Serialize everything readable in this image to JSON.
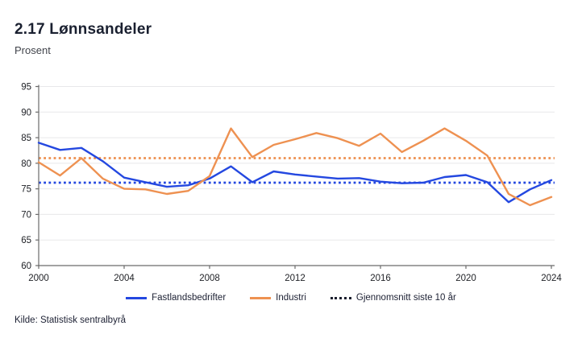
{
  "header": {
    "title": "2.17 Lønnsandeler",
    "subtitle": "Prosent"
  },
  "footer": {
    "source": "Kilde: Statistisk sentralbyrå"
  },
  "legend": {
    "items": [
      {
        "label": "Fastlandsbedrifter",
        "swatch": "line",
        "color": "#2448e0"
      },
      {
        "label": "Industri",
        "swatch": "line",
        "color": "#ee9151"
      },
      {
        "label": "Gjennomsnitt siste 10 år",
        "swatch": "dotted",
        "color": "#1b1f2e"
      }
    ]
  },
  "colors": {
    "grid": "#e8e8ea",
    "axis": "#6b6b6b",
    "tick_text": "#212328",
    "title": "#1a2030",
    "subtitle": "#41444b",
    "footer_text": "#1c2033",
    "mainland_blue": "#2448e0",
    "industry_orange": "#ee9151"
  },
  "chart_data": {
    "type": "line",
    "title": "2.17 Lønnsandeler",
    "ylabel": "Prosent",
    "xlabel": "",
    "grid": "horizontal",
    "legend_position": "bottom",
    "ylim": [
      60,
      95
    ],
    "yticks": [
      60,
      65,
      70,
      75,
      80,
      85,
      90,
      95
    ],
    "xticks": [
      2000,
      2004,
      2008,
      2012,
      2016,
      2020,
      2024
    ],
    "x": [
      2000,
      2001,
      2002,
      2003,
      2004,
      2005,
      2006,
      2007,
      2008,
      2009,
      2010,
      2011,
      2012,
      2013,
      2014,
      2015,
      2016,
      2017,
      2018,
      2019,
      2020,
      2021,
      2022,
      2023,
      2024
    ],
    "series": [
      {
        "name": "Fastlandsbedrifter",
        "type": "line",
        "style": "solid",
        "color": "#2448e0",
        "values": [
          84.0,
          82.6,
          83.0,
          80.4,
          77.2,
          76.3,
          75.4,
          75.7,
          77.0,
          79.4,
          76.3,
          78.4,
          77.8,
          77.4,
          77.0,
          77.1,
          76.4,
          76.1,
          76.2,
          77.3,
          77.7,
          76.3,
          72.4,
          74.9,
          76.7
        ]
      },
      {
        "name": "Industri",
        "type": "line",
        "style": "solid",
        "color": "#ee9151",
        "values": [
          80.2,
          77.6,
          81.0,
          77.0,
          75.0,
          74.9,
          74.0,
          74.6,
          77.5,
          86.8,
          81.2,
          83.6,
          84.7,
          85.9,
          84.9,
          83.4,
          85.8,
          82.2,
          84.4,
          86.8,
          84.4,
          81.5,
          74.0,
          71.8,
          73.4
        ]
      },
      {
        "name": "Gjennomsnitt siste 10 år – Fastlandsbedrifter",
        "type": "reference-line",
        "style": "dotted",
        "color": "#2448e0",
        "value": 76.2
      },
      {
        "name": "Gjennomsnitt siste 10 år – Industri",
        "type": "reference-line",
        "style": "dotted",
        "color": "#ee9151",
        "value": 81.0
      }
    ]
  }
}
